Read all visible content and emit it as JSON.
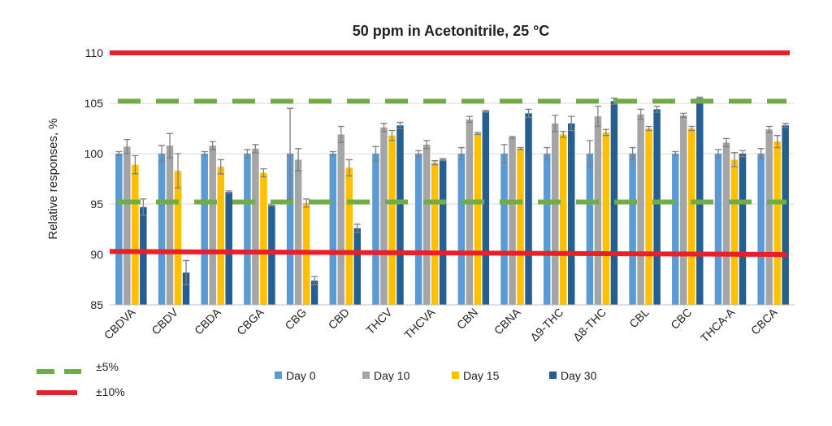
{
  "chart_data": {
    "type": "bar",
    "title": "50 ppm in Acetonitrile, 25 °C",
    "xlabel": "",
    "ylabel": "Relative responses, %",
    "ylim": [
      85,
      110
    ],
    "yticks": [
      85,
      90,
      95,
      100,
      105,
      110
    ],
    "grid": true,
    "legend_position": "bottom",
    "categories": [
      "CBDVA",
      "CBDV",
      "CBDA",
      "CBGA",
      "CBG",
      "CBD",
      "THCV",
      "THCVA",
      "CBN",
      "CBNA",
      "Δ9-THC",
      "Δ8-THC",
      "CBL",
      "CBC",
      "THCA-A",
      "CBCA"
    ],
    "series": [
      {
        "name": "Day 0",
        "color": "#5b9bd5",
        "values": [
          100,
          100,
          100,
          100,
          100,
          100,
          100,
          100,
          100,
          100,
          100,
          100,
          100,
          100,
          100,
          100
        ],
        "errors": [
          0.2,
          0.8,
          0.2,
          0.4,
          4.5,
          0.2,
          0.7,
          0.3,
          0.6,
          0.9,
          0.6,
          1.3,
          0.6,
          0.2,
          0.4,
          0.5
        ]
      },
      {
        "name": "Day 10",
        "color": "#a5a5a5",
        "values": [
          100.7,
          100.8,
          100.8,
          100.5,
          99.4,
          101.9,
          102.6,
          100.9,
          103.4,
          101.6,
          103,
          103.7,
          103.9,
          103.8,
          101.1,
          102.4
        ],
        "errors": [
          0.7,
          1.2,
          0.4,
          0.4,
          1.1,
          0.8,
          0.4,
          0.4,
          0.3,
          0.1,
          0.8,
          1.0,
          0.5,
          0.2,
          0.4,
          0.3
        ]
      },
      {
        "name": "Day 15",
        "color": "#ffc000",
        "values": [
          98.9,
          98.3,
          98.7,
          98.1,
          95.1,
          98.6,
          101.8,
          99.1,
          102,
          100.5,
          101.9,
          102.1,
          102.5,
          102.5,
          99.4,
          101.2
        ],
        "errors": [
          0.9,
          1.7,
          0.7,
          0.4,
          0.4,
          0.8,
          0.5,
          0.2,
          0.1,
          0.1,
          0.3,
          0.3,
          0.2,
          0.2,
          0.7,
          0.6
        ]
      },
      {
        "name": "Day 30",
        "color": "#255e91",
        "values": [
          94.7,
          88.2,
          96.2,
          94.9,
          87.4,
          92.6,
          102.8,
          99.4,
          104.2,
          104,
          103,
          105.2,
          104.4,
          105.5,
          100,
          102.8
        ],
        "errors": [
          0.8,
          1.2,
          0.1,
          0.1,
          0.4,
          0.4,
          0.3,
          0.1,
          0.1,
          0.4,
          0.7,
          0.3,
          0.3,
          0.1,
          0.3,
          0.2
        ]
      }
    ],
    "reference_lines": [
      {
        "label": "±5%",
        "color": "#70ad47",
        "style": "dashed",
        "values": [
          95,
          105
        ]
      },
      {
        "label": "±10%",
        "color": "#e8202a",
        "style": "solid",
        "values": [
          90,
          110
        ]
      }
    ]
  }
}
